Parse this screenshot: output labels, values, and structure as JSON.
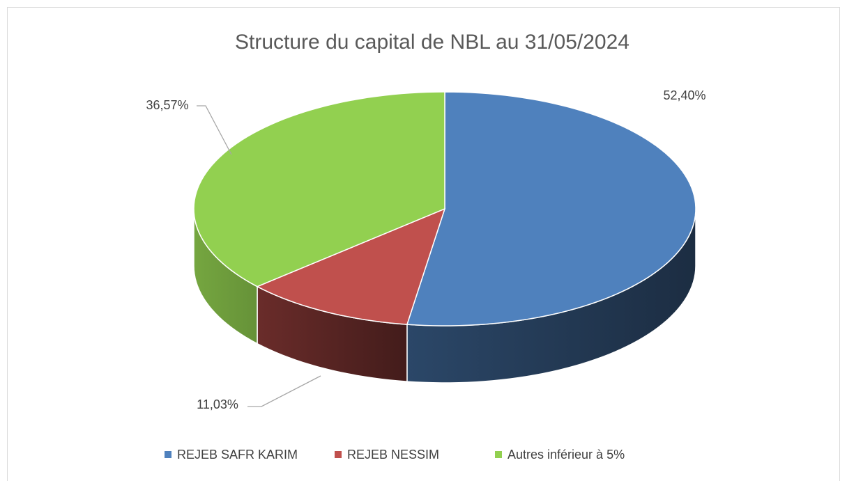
{
  "chart_data": {
    "type": "pie",
    "title": "Structure du capital de NBL au 31/05/2024",
    "categories": [
      "REJEB SAFR KARIM",
      "REJEB NESSIM",
      "Autres inférieur à 5%"
    ],
    "values": [
      52.4,
      11.03,
      36.57
    ],
    "value_labels": [
      "52,40%",
      "11,03%",
      "36,57%"
    ],
    "colors": [
      "#4f81bd",
      "#c0504d",
      "#92d050"
    ],
    "legend": "bottom"
  }
}
